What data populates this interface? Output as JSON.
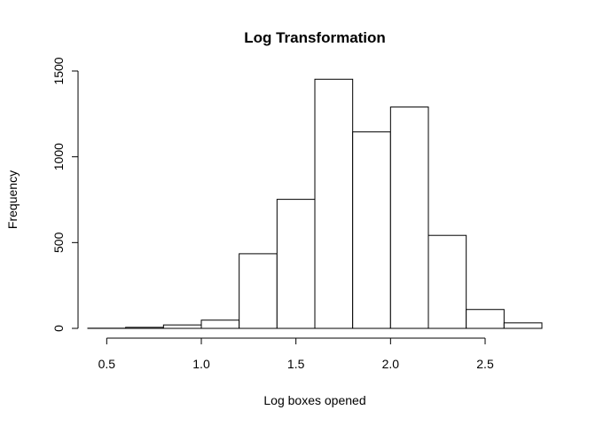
{
  "chart_data": {
    "type": "bar",
    "title": "Log Transformation",
    "xlabel": "Log boxes opened",
    "ylabel": "Frequency",
    "bins": [
      {
        "start": 0.4,
        "end": 0.6,
        "value": 1
      },
      {
        "start": 0.6,
        "end": 0.8,
        "value": 6
      },
      {
        "start": 0.8,
        "end": 1.0,
        "value": 20
      },
      {
        "start": 1.0,
        "end": 1.2,
        "value": 48
      },
      {
        "start": 1.2,
        "end": 1.4,
        "value": 435
      },
      {
        "start": 1.4,
        "end": 1.6,
        "value": 752
      },
      {
        "start": 1.6,
        "end": 1.8,
        "value": 1452
      },
      {
        "start": 1.8,
        "end": 2.0,
        "value": 1145
      },
      {
        "start": 2.0,
        "end": 2.2,
        "value": 1290
      },
      {
        "start": 2.2,
        "end": 2.4,
        "value": 542
      },
      {
        "start": 2.4,
        "end": 2.6,
        "value": 110
      },
      {
        "start": 2.6,
        "end": 2.8,
        "value": 32
      }
    ],
    "xlim": [
      0.4,
      2.8
    ],
    "ylim": [
      0,
      1500
    ],
    "xticks": [
      0.5,
      1.0,
      1.5,
      2.0,
      2.5
    ],
    "xtick_labels": [
      "0.5",
      "1.0",
      "1.5",
      "2.0",
      "2.5"
    ],
    "yticks": [
      0,
      500,
      1000,
      1500
    ],
    "ytick_labels": [
      "0",
      "500",
      "1000",
      "1500"
    ],
    "grid": false,
    "legend": "none",
    "bar_fill": "#ffffff",
    "bar_stroke": "#000000"
  }
}
